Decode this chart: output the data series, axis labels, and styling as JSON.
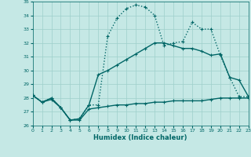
{
  "xlabel": "Humidex (Indice chaleur)",
  "xlim": [
    0,
    23
  ],
  "ylim": [
    26,
    35
  ],
  "yticks": [
    26,
    27,
    28,
    29,
    30,
    31,
    32,
    33,
    34,
    35
  ],
  "xticks": [
    0,
    1,
    2,
    3,
    4,
    5,
    6,
    7,
    8,
    9,
    10,
    11,
    12,
    13,
    14,
    15,
    16,
    17,
    18,
    19,
    20,
    21,
    22,
    23
  ],
  "bg_color": "#c5e8e5",
  "grid_color": "#9ecfcb",
  "line_color": "#006666",
  "dotted_x": [
    0,
    1,
    2,
    3,
    4,
    5,
    6,
    7,
    8,
    9,
    10,
    11,
    12,
    13,
    14,
    15,
    16,
    17,
    18,
    19,
    20,
    21,
    22,
    23
  ],
  "dotted_y": [
    28.2,
    27.7,
    28.0,
    27.3,
    26.4,
    26.5,
    27.5,
    27.5,
    32.5,
    33.8,
    34.5,
    34.75,
    34.6,
    34.0,
    31.8,
    32.0,
    32.1,
    33.5,
    33.0,
    33.0,
    31.1,
    29.5,
    28.1,
    28.1
  ],
  "solid1_x": [
    0,
    1,
    2,
    3,
    4,
    5,
    6,
    7,
    8,
    9,
    10,
    11,
    12,
    13,
    14,
    15,
    16,
    17,
    18,
    19,
    20,
    21,
    22,
    23
  ],
  "solid1_y": [
    28.2,
    27.7,
    28.0,
    27.3,
    26.4,
    26.5,
    27.5,
    29.7,
    30.0,
    30.4,
    30.8,
    31.2,
    31.6,
    32.0,
    32.0,
    31.8,
    31.6,
    31.6,
    31.4,
    31.1,
    31.2,
    29.5,
    29.3,
    28.1
  ],
  "solid2_x": [
    0,
    1,
    2,
    3,
    4,
    5,
    6,
    7,
    8,
    9,
    10,
    11,
    12,
    13,
    14,
    15,
    16,
    17,
    18,
    19,
    20,
    21,
    22,
    23
  ],
  "solid2_y": [
    28.2,
    27.7,
    27.9,
    27.3,
    26.4,
    26.4,
    27.2,
    27.3,
    27.4,
    27.5,
    27.5,
    27.6,
    27.6,
    27.7,
    27.7,
    27.8,
    27.8,
    27.8,
    27.8,
    27.9,
    28.0,
    28.0,
    28.0,
    28.0
  ]
}
